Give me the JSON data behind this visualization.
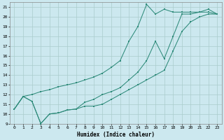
{
  "xlabel": "Humidex (Indice chaleur)",
  "bg_color": "#cce8ef",
  "grid_color": "#aacccc",
  "line_color": "#2e8b7a",
  "xlim": [
    -0.5,
    23.5
  ],
  "ylim": [
    9,
    21.5
  ],
  "xticks": [
    0,
    1,
    2,
    3,
    4,
    5,
    6,
    7,
    8,
    9,
    10,
    11,
    12,
    13,
    14,
    15,
    16,
    17,
    18,
    19,
    20,
    21,
    22,
    23
  ],
  "yticks": [
    9,
    10,
    11,
    12,
    13,
    14,
    15,
    16,
    17,
    18,
    19,
    20,
    21
  ],
  "line1_x": [
    0,
    1,
    2,
    3,
    4,
    5,
    6,
    7,
    8,
    9,
    10,
    11,
    12,
    13,
    14,
    15,
    16,
    17,
    18,
    19,
    20,
    21,
    22,
    23
  ],
  "line1_y": [
    10.5,
    11.8,
    11.3,
    9.0,
    10.0,
    10.1,
    10.4,
    10.5,
    10.8,
    10.8,
    11.0,
    11.5,
    12.0,
    12.5,
    13.0,
    13.5,
    14.0,
    14.5,
    16.5,
    18.5,
    19.5,
    20.0,
    20.3,
    20.3
  ],
  "line2_x": [
    0,
    1,
    2,
    3,
    4,
    5,
    6,
    7,
    8,
    9,
    10,
    11,
    12,
    13,
    14,
    15,
    16,
    17,
    18,
    19,
    20,
    21,
    22,
    23
  ],
  "line2_y": [
    10.5,
    11.8,
    11.3,
    9.0,
    10.0,
    10.1,
    10.4,
    10.5,
    11.2,
    11.5,
    12.0,
    12.3,
    12.7,
    13.5,
    14.3,
    15.5,
    17.5,
    15.7,
    18.0,
    20.3,
    20.3,
    20.5,
    20.5,
    20.3
  ],
  "line3_x": [
    0,
    1,
    2,
    3,
    4,
    5,
    6,
    7,
    8,
    9,
    10,
    11,
    12,
    13,
    14,
    15,
    16,
    17,
    18,
    19,
    20,
    21,
    22,
    23
  ],
  "line3_y": [
    10.5,
    11.8,
    12.0,
    12.3,
    12.5,
    12.8,
    13.0,
    13.2,
    13.5,
    13.8,
    14.2,
    14.8,
    15.5,
    17.5,
    19.0,
    21.3,
    20.3,
    20.8,
    20.5,
    20.5,
    20.5,
    20.5,
    20.8,
    20.3
  ]
}
